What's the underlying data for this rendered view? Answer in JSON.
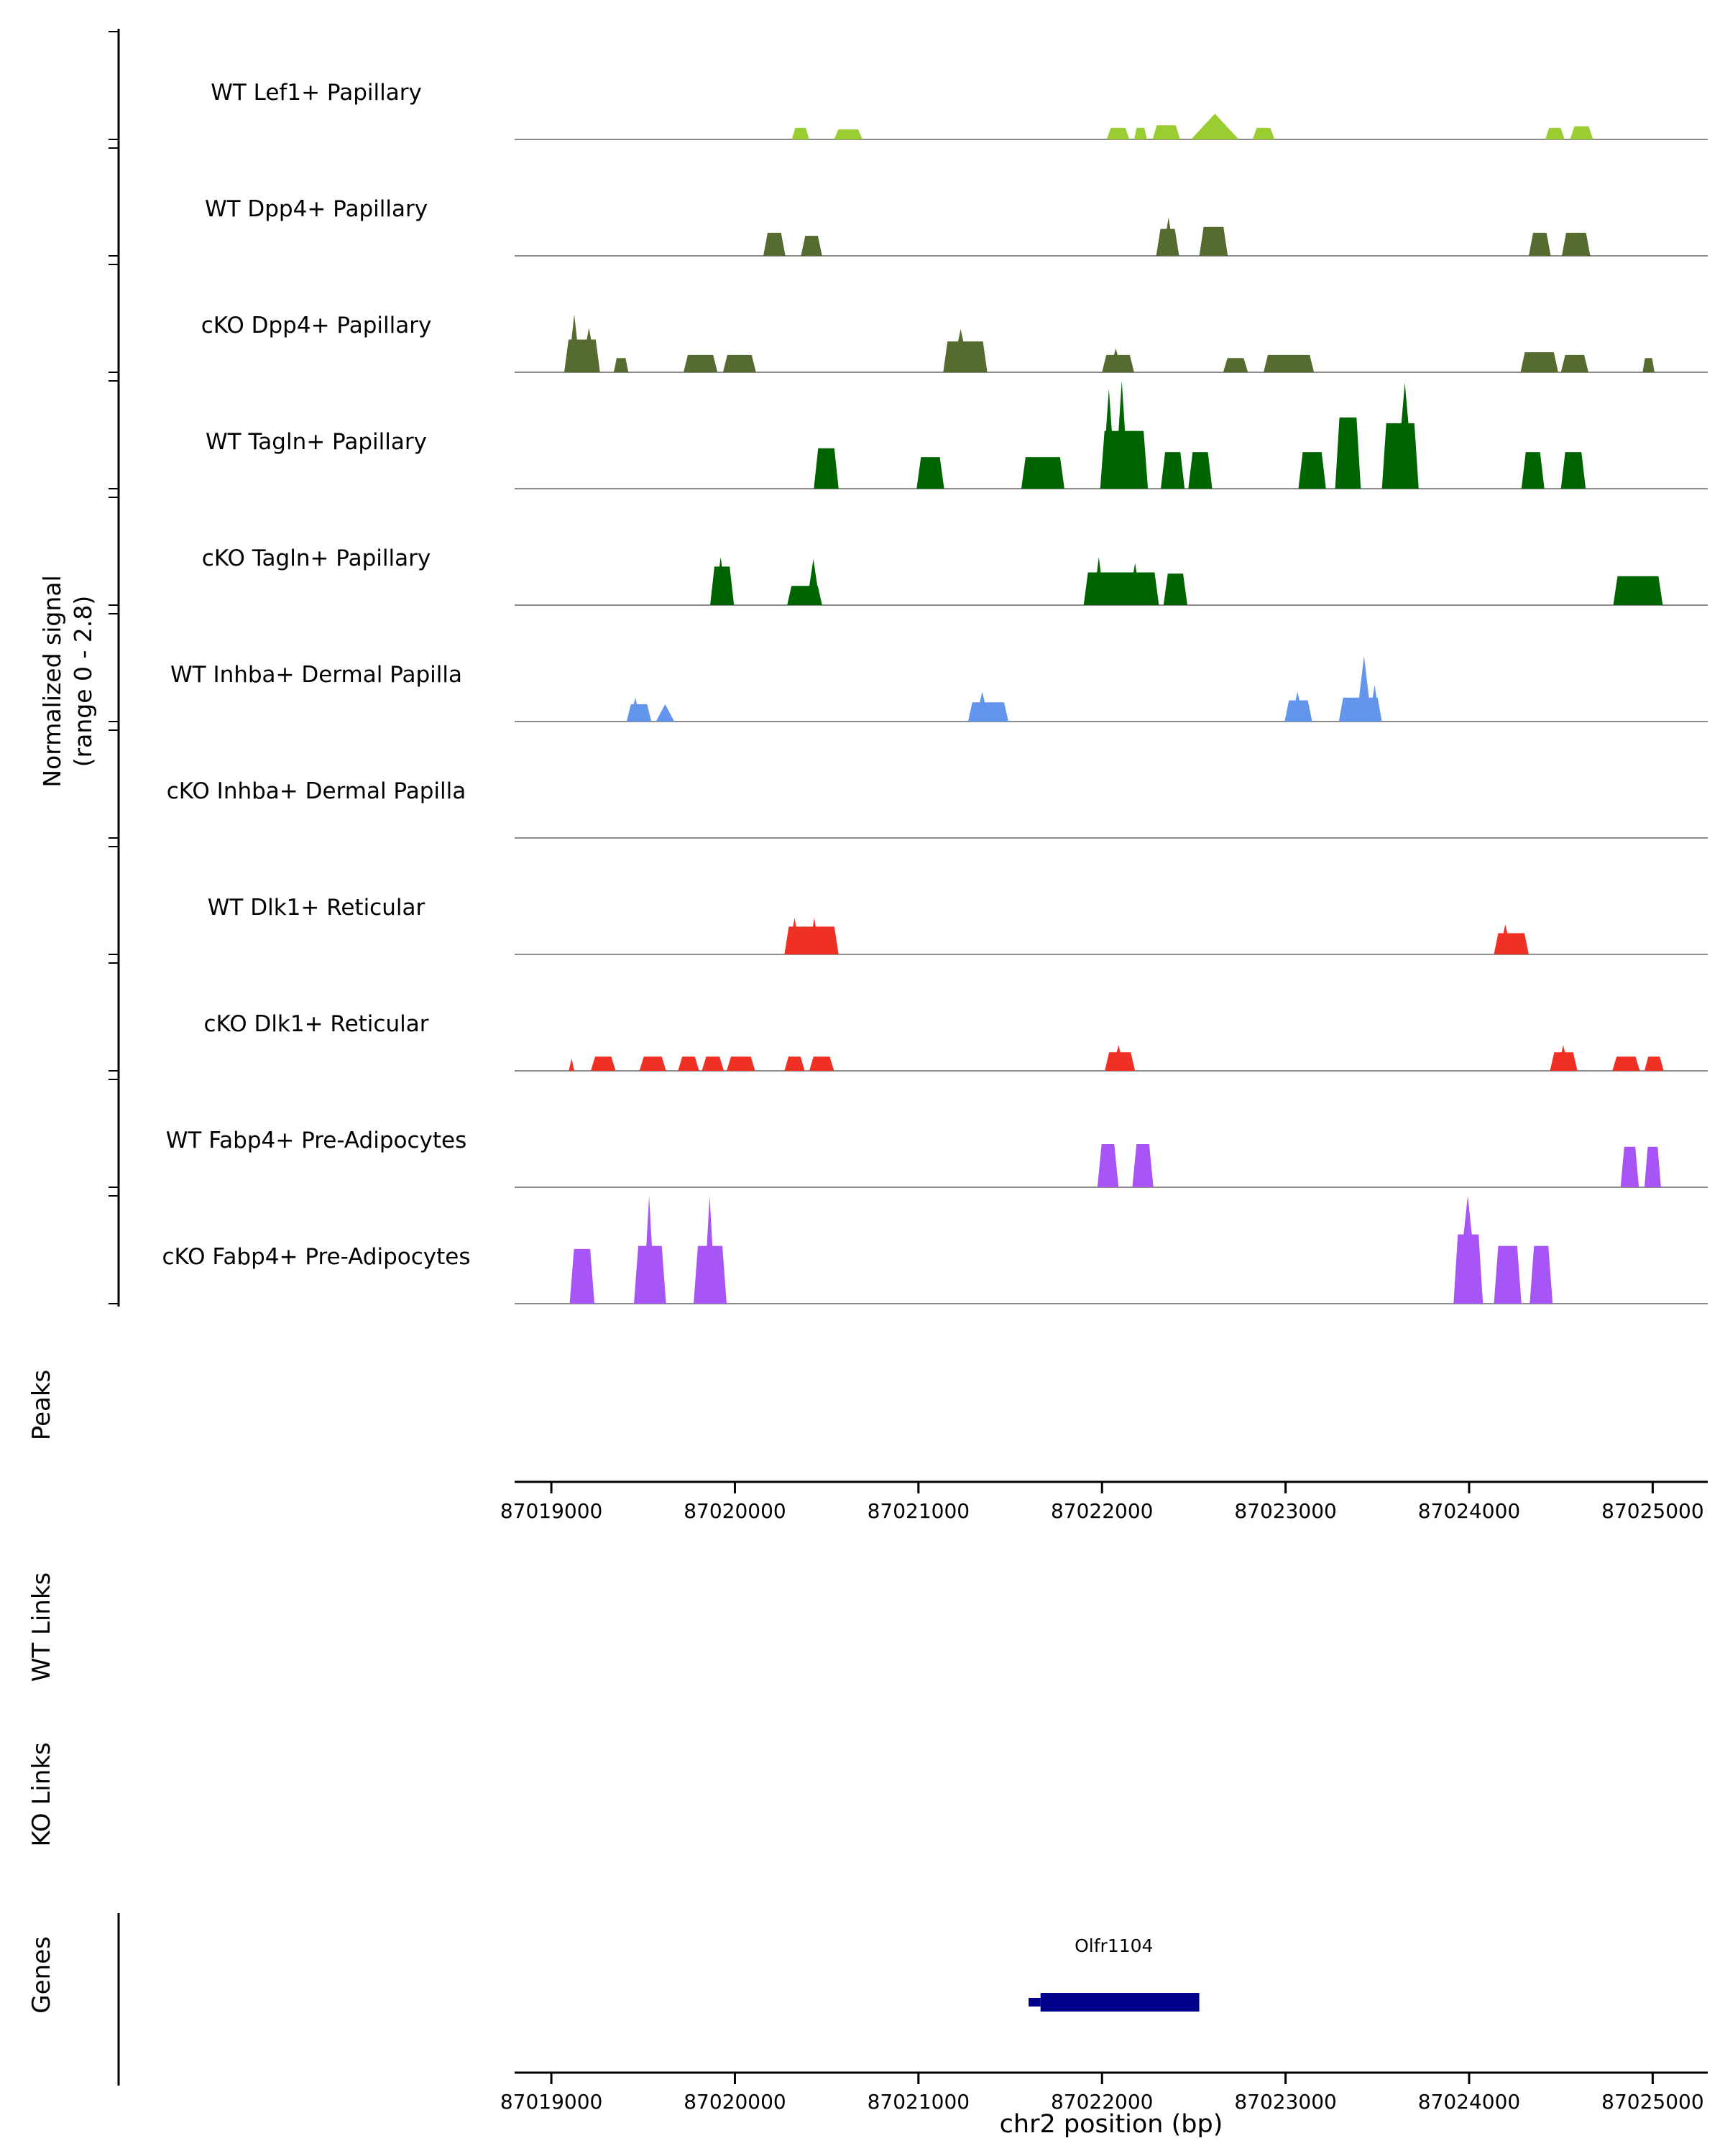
{
  "chart_data": {
    "type": "area",
    "title": "",
    "xlabel": "chr2 position (bp)",
    "ylabel": "Normalized signal\n(range 0 - 2.8)",
    "y_max": 2.8,
    "x_domain": [
      87018800,
      87025300
    ],
    "x_ticks": [
      87019000,
      87020000,
      87021000,
      87022000,
      87023000,
      87024000,
      87025000
    ],
    "sections": {
      "peaks": "Peaks",
      "wt_links": "WT Links",
      "ko_links": "KO Links",
      "genes": "Genes"
    },
    "layout": {
      "grid": false,
      "legend": "none",
      "baseline_color": "#8c8c8c",
      "axis_color": "#000000"
    },
    "tracks": [
      {
        "label": "WT Lef1+ Papillary",
        "color": "#9ACD32",
        "peaks": [
          [
            87020310,
            87020405,
            0.3,
            "b"
          ],
          [
            87020540,
            87020695,
            0.26,
            "b"
          ],
          [
            87022025,
            87022150,
            0.3,
            "b"
          ],
          [
            87022175,
            87022245,
            0.3,
            "b"
          ],
          [
            87022275,
            87022425,
            0.37,
            "b"
          ],
          [
            87022485,
            87022745,
            0.67,
            "s"
          ],
          [
            87022820,
            87022940,
            0.3,
            "b"
          ],
          [
            87024415,
            87024520,
            0.3,
            "b"
          ],
          [
            87024550,
            87024675,
            0.34,
            "b"
          ]
        ]
      },
      {
        "label": "WT Dpp4+ Papillary",
        "color": "#556B2F",
        "peaks": [
          [
            87020155,
            87020275,
            0.6,
            "b"
          ],
          [
            87020360,
            87020475,
            0.52,
            "b"
          ],
          [
            87022295,
            87022420,
            0.7,
            "b"
          ],
          [
            87022330,
            87022395,
            1.0,
            "s"
          ],
          [
            87022530,
            87022685,
            0.75,
            "b"
          ],
          [
            87024325,
            87024445,
            0.6,
            "b"
          ],
          [
            87024505,
            87024660,
            0.6,
            "b"
          ]
        ]
      },
      {
        "label": "cKO Dpp4+ Papillary",
        "color": "#556B2F",
        "peaks": [
          [
            87019070,
            87019265,
            0.85,
            "b"
          ],
          [
            87019090,
            87019160,
            1.5,
            "s"
          ],
          [
            87019160,
            87019250,
            1.15,
            "s"
          ],
          [
            87019340,
            87019420,
            0.37,
            "b"
          ],
          [
            87019720,
            87019905,
            0.45,
            "b"
          ],
          [
            87019935,
            87020115,
            0.45,
            "b"
          ],
          [
            87021135,
            87021375,
            0.8,
            "b"
          ],
          [
            87021180,
            87021280,
            1.12,
            "s"
          ],
          [
            87022000,
            87022175,
            0.45,
            "b"
          ],
          [
            87022040,
            87022110,
            0.62,
            "s"
          ],
          [
            87022660,
            87022795,
            0.37,
            "b"
          ],
          [
            87022880,
            87023155,
            0.45,
            "b"
          ],
          [
            87024280,
            87024485,
            0.52,
            "b"
          ],
          [
            87024500,
            87024650,
            0.45,
            "b"
          ],
          [
            87024945,
            87025010,
            0.37,
            "b"
          ]
        ]
      },
      {
        "label": "WT Tagln+ Papillary",
        "color": "#006400",
        "peaks": [
          [
            87020430,
            87020565,
            1.05,
            "b"
          ],
          [
            87020990,
            87021140,
            0.82,
            "b"
          ],
          [
            87021560,
            87021795,
            0.82,
            "b"
          ],
          [
            87021990,
            87022250,
            1.5,
            "b"
          ],
          [
            87022000,
            87022075,
            2.6,
            "s"
          ],
          [
            87022070,
            87022145,
            2.8,
            "s"
          ],
          [
            87022320,
            87022450,
            0.95,
            "b"
          ],
          [
            87022470,
            87022600,
            0.95,
            "b"
          ],
          [
            87023070,
            87023220,
            0.95,
            "b"
          ],
          [
            87023270,
            87023410,
            1.85,
            "b"
          ],
          [
            87023525,
            87023725,
            1.7,
            "b"
          ],
          [
            87023600,
            87023700,
            2.75,
            "s"
          ],
          [
            87024285,
            87024410,
            0.95,
            "b"
          ],
          [
            87024500,
            87024635,
            0.95,
            "b"
          ]
        ]
      },
      {
        "label": "cKO Tagln+ Papillary",
        "color": "#006400",
        "peaks": [
          [
            87019865,
            87019995,
            1.0,
            "b"
          ],
          [
            87019890,
            87019955,
            1.25,
            "s"
          ],
          [
            87020285,
            87020475,
            0.5,
            "b"
          ],
          [
            87020390,
            87020465,
            1.2,
            "s"
          ],
          [
            87021900,
            87022310,
            0.85,
            "b"
          ],
          [
            87021950,
            87022015,
            1.25,
            "s"
          ],
          [
            87022145,
            87022215,
            1.1,
            "s"
          ],
          [
            87022335,
            87022465,
            0.82,
            "b"
          ],
          [
            87024785,
            87025055,
            0.75,
            "b"
          ]
        ]
      },
      {
        "label": "WT Inhba+ Dermal Papilla",
        "color": "#6495ED",
        "peaks": [
          [
            87019410,
            87019545,
            0.45,
            "b"
          ],
          [
            87019425,
            87019490,
            0.62,
            "s"
          ],
          [
            87019570,
            87019670,
            0.45,
            "s"
          ],
          [
            87021270,
            87021490,
            0.5,
            "b"
          ],
          [
            87021310,
            87021385,
            0.78,
            "s"
          ],
          [
            87022995,
            87023145,
            0.55,
            "b"
          ],
          [
            87023030,
            87023100,
            0.78,
            "s"
          ],
          [
            87023290,
            87023525,
            0.62,
            "b"
          ],
          [
            87023385,
            87023470,
            1.7,
            "s"
          ],
          [
            87023455,
            87023515,
            0.95,
            "s"
          ]
        ]
      },
      {
        "label": "cKO Inhba+ Dermal Papilla",
        "color": "#6495ED",
        "peaks": []
      },
      {
        "label": "WT Dlk1+ Reticular",
        "color": "#EE3124",
        "peaks": [
          [
            87020270,
            87020565,
            0.72,
            "b"
          ],
          [
            87020290,
            87020360,
            0.95,
            "s"
          ],
          [
            87020400,
            87020465,
            0.95,
            "s"
          ],
          [
            87024135,
            87024325,
            0.55,
            "b"
          ],
          [
            87024160,
            87024235,
            0.78,
            "s"
          ]
        ]
      },
      {
        "label": "cKO Dlk1+ Reticular",
        "color": "#EE3124",
        "peaks": [
          [
            87019095,
            87019125,
            0.32,
            "s"
          ],
          [
            87019215,
            87019350,
            0.37,
            "b"
          ],
          [
            87019480,
            87019625,
            0.37,
            "b"
          ],
          [
            87019690,
            87019805,
            0.37,
            "b"
          ],
          [
            87019820,
            87019940,
            0.37,
            "b"
          ],
          [
            87019955,
            87020110,
            0.37,
            "b"
          ],
          [
            87020270,
            87020380,
            0.37,
            "b"
          ],
          [
            87020405,
            87020540,
            0.37,
            "b"
          ],
          [
            87022015,
            87022180,
            0.48,
            "b"
          ],
          [
            87022055,
            87022125,
            0.67,
            "s"
          ],
          [
            87024440,
            87024590,
            0.48,
            "b"
          ],
          [
            87024480,
            87024545,
            0.67,
            "s"
          ],
          [
            87024780,
            87024930,
            0.37,
            "b"
          ],
          [
            87024955,
            87025060,
            0.37,
            "b"
          ]
        ]
      },
      {
        "label": "WT Fabp4+ Pre-Adipocytes",
        "color": "#A855F7",
        "peaks": [
          [
            87021975,
            87022090,
            1.12,
            "b"
          ],
          [
            87022165,
            87022280,
            1.12,
            "b"
          ],
          [
            87024825,
            87024925,
            1.05,
            "b"
          ],
          [
            87024955,
            87025045,
            1.05,
            "b"
          ]
        ]
      },
      {
        "label": "cKO Fabp4+ Pre-Adipocytes",
        "color": "#A855F7",
        "peaks": [
          [
            87019100,
            87019235,
            1.42,
            "b"
          ],
          [
            87019450,
            87019625,
            1.5,
            "b"
          ],
          [
            87019500,
            87019565,
            2.8,
            "s"
          ],
          [
            87019775,
            87019955,
            1.5,
            "b"
          ],
          [
            87019830,
            87019895,
            2.8,
            "s"
          ],
          [
            87023915,
            87024075,
            1.8,
            "b"
          ],
          [
            87023930,
            87024055,
            2.8,
            "s"
          ],
          [
            87024135,
            87024285,
            1.5,
            "b"
          ],
          [
            87024330,
            87024455,
            1.5,
            "b"
          ]
        ]
      }
    ],
    "gene": {
      "name": "Olfr1104",
      "start": 87021600,
      "thick_start": 87021665,
      "end": 87022530,
      "color": "#00008B"
    }
  }
}
